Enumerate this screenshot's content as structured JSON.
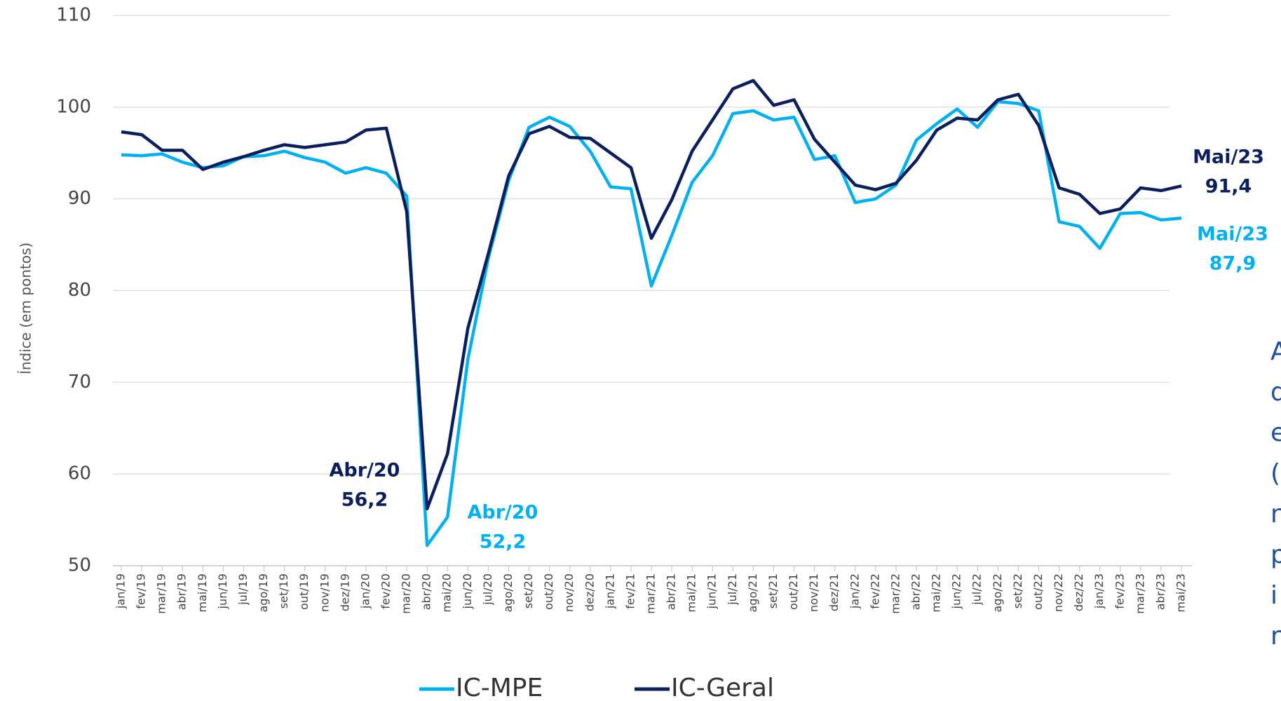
{
  "chart_data": {
    "type": "line",
    "y_axis_label": "Índice (em pontos)",
    "categories": [
      "jan/19",
      "fev/19",
      "mar/19",
      "abr/19",
      "mai/19",
      "jun/19",
      "jul/19",
      "ago/19",
      "set/19",
      "out/19",
      "nov/19",
      "dez/19",
      "jan/20",
      "fev/20",
      "mar/20",
      "abr/20",
      "mai/20",
      "jun/20",
      "jul/20",
      "ago/20",
      "set/20",
      "out/20",
      "nov/20",
      "dez/20",
      "jan/21",
      "fev/21",
      "mar/21",
      "abr/21",
      "mai/21",
      "jun/21",
      "jul/21",
      "ago/21",
      "set/21",
      "out/21",
      "nov/21",
      "dez/21",
      "jan/22",
      "fev/22",
      "mar/22",
      "abr/22",
      "mai/22",
      "jun/22",
      "jul/22",
      "ago/22",
      "set/22",
      "out/22",
      "nov/22",
      "dez/22",
      "jan/23",
      "fev/23",
      "mar/23",
      "abr/23",
      "mai/23"
    ],
    "series": [
      {
        "name": "IC-MPE",
        "color": "#00b0f0",
        "values": [
          94.8,
          94.7,
          94.9,
          94.0,
          93.4,
          93.6,
          94.6,
          94.7,
          95.2,
          94.5,
          94.0,
          92.8,
          93.4,
          92.8,
          90.3,
          52.2,
          55.3,
          72.5,
          83.5,
          92.0,
          97.8,
          98.9,
          97.9,
          95.2,
          91.3,
          91.1,
          80.5,
          86.0,
          91.8,
          94.7,
          99.3,
          99.6,
          98.6,
          98.9,
          94.3,
          94.7,
          89.6,
          90.0,
          91.5,
          96.4,
          98.2,
          99.8,
          97.8,
          100.6,
          100.4,
          99.6,
          87.5,
          87.0,
          84.6,
          88.4,
          88.5,
          87.7,
          87.9
        ]
      },
      {
        "name": "IC-Geral",
        "color": "#0a1f5c",
        "values": [
          97.3,
          97.0,
          95.3,
          95.3,
          93.2,
          94.0,
          94.6,
          95.3,
          95.9,
          95.6,
          95.9,
          96.2,
          97.5,
          97.7,
          88.6,
          56.2,
          62.2,
          75.9,
          84.0,
          92.5,
          97.1,
          97.9,
          96.7,
          96.6,
          95.0,
          93.4,
          85.7,
          89.9,
          95.2,
          98.6,
          102.0,
          102.9,
          100.2,
          100.8,
          96.5,
          94.0,
          91.5,
          91.0,
          91.7,
          94.2,
          97.5,
          98.8,
          98.6,
          100.8,
          101.4,
          98.0,
          91.2,
          90.5,
          88.4,
          88.9,
          91.2,
          90.9,
          91.4
        ]
      }
    ],
    "annotations": [
      {
        "series": 1,
        "index": 15,
        "label": "Abr/20",
        "value_label": "56,2"
      },
      {
        "series": 0,
        "index": 15,
        "label": "Abr/20",
        "value_label": "52,2"
      },
      {
        "series": 1,
        "index": 52,
        "label": "Mai/23",
        "value_label": "91,4"
      },
      {
        "series": 0,
        "index": 52,
        "label": "Mai/23",
        "value_label": "87,9"
      }
    ],
    "ylim": [
      50,
      110
    ],
    "yticks": [
      50,
      60,
      70,
      80,
      90,
      100,
      110
    ],
    "grid": true,
    "legend": "bottom",
    "cut_text_lines": [
      "A",
      "d",
      "e",
      "(",
      "n",
      "p",
      "i",
      "n"
    ]
  }
}
